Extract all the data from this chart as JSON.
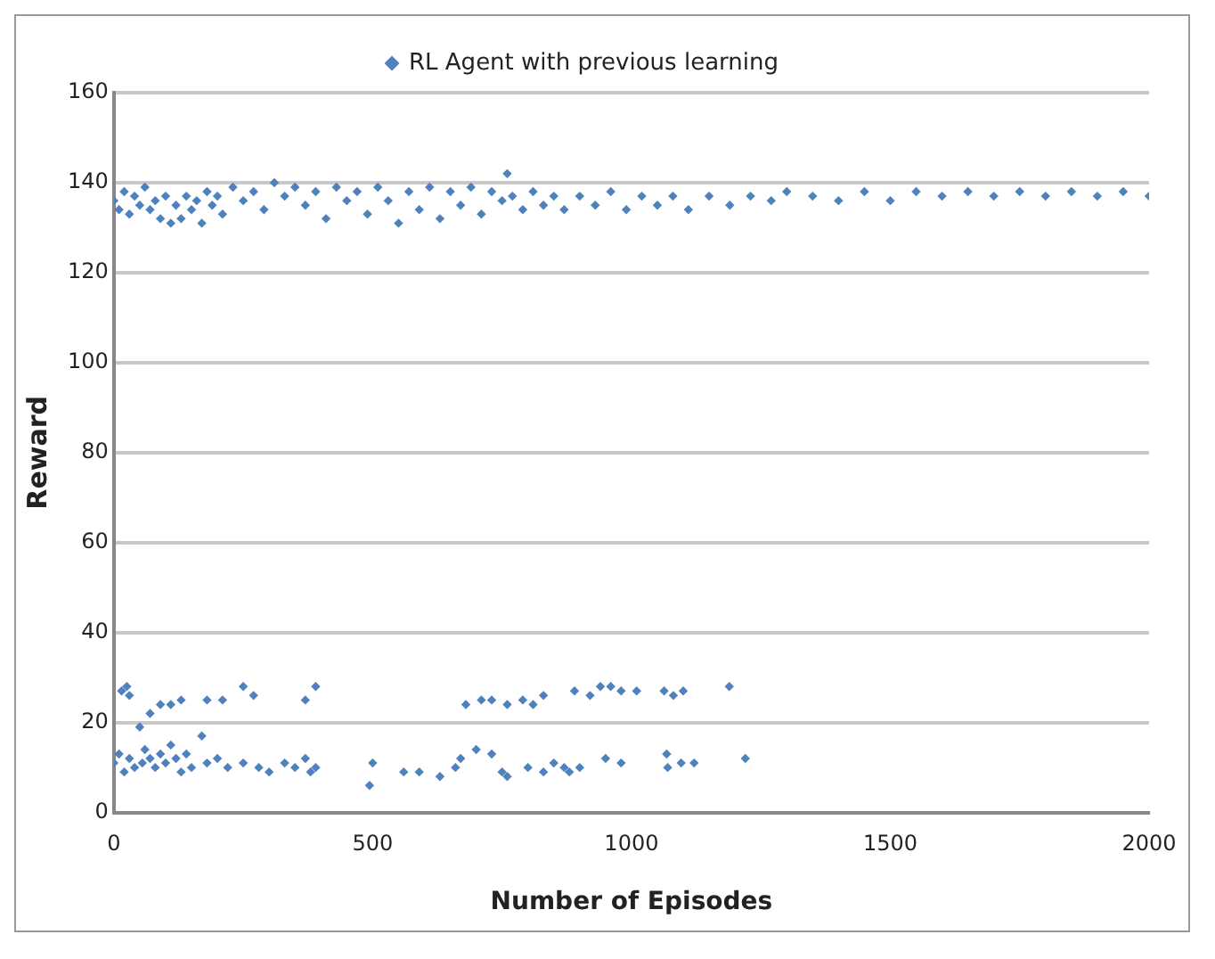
{
  "chart_data": {
    "type": "scatter",
    "xlabel": "Number of Episodes",
    "ylabel": "Reward",
    "x": [
      0,
      10,
      20,
      30,
      40,
      50,
      60,
      70,
      80,
      90,
      100,
      110,
      120,
      130,
      140,
      150,
      160,
      170,
      180,
      190,
      200,
      210,
      230,
      250,
      270,
      290,
      310,
      330,
      350,
      370,
      390,
      410,
      430,
      450,
      470,
      490,
      510,
      530,
      550,
      570,
      590,
      610,
      630,
      650,
      670,
      690,
      710,
      730,
      750,
      760,
      770,
      790,
      810,
      830,
      850,
      870,
      900,
      930,
      960,
      990,
      1020,
      1050,
      1080,
      1110,
      1150,
      1190,
      1230,
      1270,
      1300,
      1350,
      1400,
      1450,
      1500,
      1550,
      1600,
      1650,
      1700,
      1750,
      1800,
      1850,
      1900,
      1950,
      2000,
      15,
      25,
      30,
      70,
      90,
      110,
      130,
      180,
      210,
      250,
      270,
      370,
      390,
      680,
      710,
      730,
      760,
      790,
      810,
      830,
      890,
      920,
      940,
      960,
      980,
      1010,
      1063,
      1081,
      1100,
      1189,
      0,
      10,
      20,
      30,
      40,
      50,
      55,
      60,
      70,
      80,
      90,
      100,
      110,
      120,
      130,
      140,
      150,
      170,
      180,
      200,
      220,
      250,
      280,
      300,
      330,
      350,
      370,
      380,
      390,
      494,
      500,
      560,
      590,
      630,
      660,
      670,
      700,
      730,
      750,
      760,
      800,
      830,
      850,
      870,
      880,
      900,
      950,
      980,
      1068,
      1070,
      1096,
      1121,
      1220
    ],
    "series": [
      {
        "name": "RL Agent with previous learning",
        "color": "#4f81bd",
        "values": [
          136,
          134,
          138,
          133,
          137,
          135,
          139,
          134,
          136,
          132,
          137,
          131,
          135,
          132,
          137,
          134,
          136,
          131,
          138,
          135,
          137,
          133,
          139,
          136,
          138,
          134,
          140,
          137,
          139,
          135,
          138,
          132,
          139,
          136,
          138,
          133,
          139,
          136,
          131,
          138,
          134,
          139,
          132,
          138,
          135,
          139,
          133,
          138,
          136,
          142,
          137,
          134,
          138,
          135,
          137,
          134,
          137,
          135,
          138,
          134,
          137,
          135,
          137,
          134,
          137,
          135,
          137,
          136,
          138,
          137,
          136,
          138,
          136,
          138,
          137,
          138,
          137,
          138,
          137,
          138,
          137,
          138,
          137,
          27,
          28,
          26,
          22,
          24,
          24,
          25,
          25,
          25,
          28,
          26,
          25,
          28,
          24,
          25,
          25,
          24,
          25,
          24,
          26,
          27,
          26,
          28,
          28,
          27,
          27,
          27,
          26,
          27,
          28,
          11,
          13,
          9,
          12,
          10,
          19,
          11,
          14,
          12,
          10,
          13,
          11,
          15,
          12,
          9,
          13,
          10,
          17,
          11,
          12,
          10,
          11,
          10,
          9,
          11,
          10,
          12,
          9,
          10,
          6,
          11,
          9,
          9,
          8,
          10,
          12,
          14,
          13,
          9,
          8,
          10,
          9,
          11,
          10,
          9,
          10,
          12,
          11,
          13,
          10,
          11,
          11,
          12
        ]
      }
    ],
    "xlim": [
      0,
      2000
    ],
    "xticks": [
      0,
      500,
      1000,
      1500,
      2000
    ],
    "ylim": [
      0,
      160
    ],
    "yticks": [
      0,
      20,
      40,
      60,
      80,
      100,
      120,
      140,
      160
    ],
    "grid": "y",
    "legend": "top",
    "marker": "diamond"
  }
}
